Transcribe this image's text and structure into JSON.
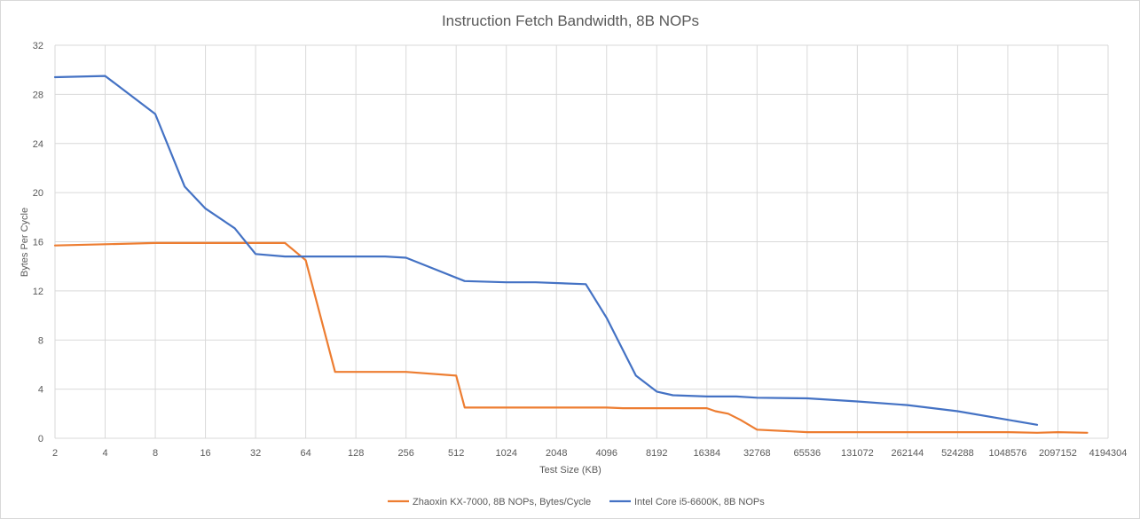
{
  "chart_data": {
    "type": "line",
    "title": "Instruction Fetch Bandwidth, 8B NOPs",
    "xlabel": "Test Size (KB)",
    "ylabel": "Bytes Per Cycle",
    "x_scale": "log2",
    "x_ticks": [
      "2",
      "4",
      "8",
      "16",
      "32",
      "64",
      "128",
      "256",
      "512",
      "1024",
      "2048",
      "4096",
      "8192",
      "16384",
      "32768",
      "65536",
      "131072",
      "262144",
      "524288",
      "1048576",
      "2097152",
      "4194304"
    ],
    "xlim": [
      2,
      4194304
    ],
    "ylim": [
      0,
      32
    ],
    "y_ticks": [
      0,
      4,
      8,
      12,
      16,
      20,
      24,
      28,
      32
    ],
    "grid": true,
    "legend_position": "bottom",
    "series": [
      {
        "name": "Zhaoxin KX-7000, 8B NOPs, Bytes/Cycle",
        "color": "#ed7d31",
        "points": [
          [
            2,
            15.7
          ],
          [
            4,
            15.8
          ],
          [
            8,
            15.9
          ],
          [
            16,
            15.9
          ],
          [
            32,
            15.9
          ],
          [
            48,
            15.9
          ],
          [
            64,
            14.5
          ],
          [
            96,
            5.4
          ],
          [
            128,
            5.4
          ],
          [
            256,
            5.4
          ],
          [
            512,
            5.1
          ],
          [
            576,
            2.5
          ],
          [
            1024,
            2.5
          ],
          [
            2048,
            2.5
          ],
          [
            4096,
            2.5
          ],
          [
            5120,
            2.45
          ],
          [
            8192,
            2.45
          ],
          [
            16384,
            2.45
          ],
          [
            18432,
            2.2
          ],
          [
            22000,
            2.0
          ],
          [
            26000,
            1.5
          ],
          [
            32768,
            0.7
          ],
          [
            65536,
            0.5
          ],
          [
            131072,
            0.5
          ],
          [
            262144,
            0.5
          ],
          [
            524288,
            0.5
          ],
          [
            1048576,
            0.5
          ],
          [
            1572864,
            0.45
          ],
          [
            2097152,
            0.5
          ],
          [
            3145728,
            0.45
          ]
        ]
      },
      {
        "name": "Intel Core i5-6600K, 8B NOPs",
        "color": "#4472c4",
        "points": [
          [
            2,
            29.4
          ],
          [
            4,
            29.5
          ],
          [
            8,
            26.4
          ],
          [
            12,
            20.5
          ],
          [
            16,
            18.7
          ],
          [
            24,
            17.1
          ],
          [
            32,
            15.0
          ],
          [
            48,
            14.8
          ],
          [
            64,
            14.8
          ],
          [
            128,
            14.8
          ],
          [
            192,
            14.8
          ],
          [
            256,
            14.7
          ],
          [
            576,
            12.8
          ],
          [
            1024,
            12.7
          ],
          [
            1536,
            12.7
          ],
          [
            3072,
            12.55
          ],
          [
            4096,
            9.8
          ],
          [
            5120,
            7.2
          ],
          [
            6144,
            5.1
          ],
          [
            8192,
            3.8
          ],
          [
            10240,
            3.5
          ],
          [
            16384,
            3.4
          ],
          [
            24576,
            3.4
          ],
          [
            32768,
            3.3
          ],
          [
            65536,
            3.25
          ],
          [
            131072,
            3.0
          ],
          [
            262144,
            2.7
          ],
          [
            524288,
            2.2
          ],
          [
            1048576,
            1.5
          ],
          [
            1572864,
            1.1
          ]
        ]
      }
    ]
  }
}
